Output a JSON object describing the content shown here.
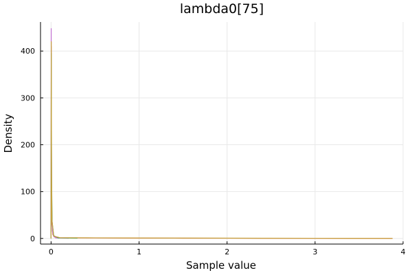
{
  "chart_data": {
    "type": "line",
    "title": "lambda0[75]",
    "xlabel": "Sample value",
    "ylabel": "Density",
    "xlim": [
      -0.12,
      4.0
    ],
    "ylim": [
      -12,
      462
    ],
    "xticks": [
      0,
      1,
      2,
      3,
      4
    ],
    "yticks": [
      0,
      100,
      200,
      300,
      400
    ],
    "grid": true,
    "legend": "none",
    "series": [
      {
        "color": "#e26f46",
        "x": [
          0.0,
          0.002,
          0.005,
          0.01,
          0.02,
          0.05,
          0.2,
          0.5,
          1.0,
          1.5,
          2.0,
          2.5,
          3.0,
          3.5,
          3.88
        ],
        "y": [
          0,
          410,
          120,
          30,
          8,
          1.5,
          1.2,
          1.0,
          0.7,
          0.5,
          0.4,
          0.3,
          0.2,
          0.15,
          0.1
        ]
      },
      {
        "color": "#c271d2",
        "x": [
          0.0,
          0.0015,
          0.004,
          0.008,
          0.015,
          0.03,
          0.06,
          0.2
        ],
        "y": [
          0,
          448,
          200,
          60,
          15,
          4,
          1,
          0.5
        ]
      },
      {
        "color": "#3da44d",
        "x": [
          0.0,
          0.002,
          0.006,
          0.012,
          0.03,
          0.08,
          0.3
        ],
        "y": [
          0,
          395,
          130,
          35,
          6,
          1.2,
          0.6
        ]
      },
      {
        "color": "#c6a13f",
        "x": [
          0.0,
          0.002,
          0.005,
          0.01,
          0.03,
          0.1,
          0.5,
          1.0,
          1.5,
          2.0,
          2.5,
          3.0,
          3.5,
          3.88
        ],
        "y": [
          0,
          420,
          150,
          40,
          5,
          1.6,
          1.3,
          1.0,
          0.8,
          0.6,
          0.45,
          0.35,
          0.25,
          0.2
        ]
      }
    ]
  }
}
